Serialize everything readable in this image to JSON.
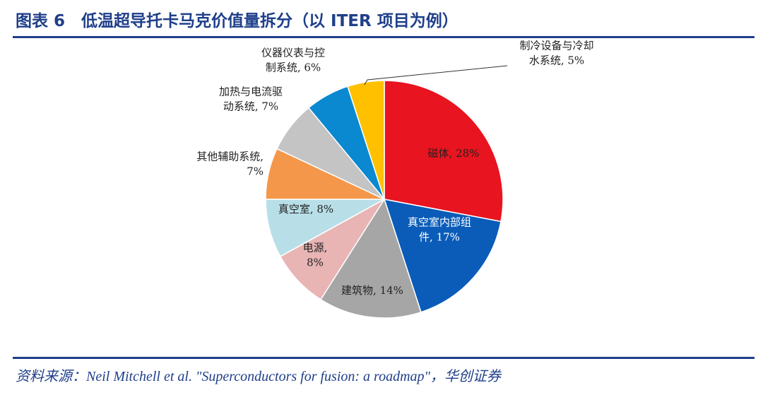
{
  "header": {
    "title": "图表 6　低温超导托卡马克价值量拆分（以 ITER 项目为例）"
  },
  "footer": {
    "source": "资料来源：Neil Mitchell et al. \"Superconductors for fusion: a roadmap\"，华创证券"
  },
  "chart_data": {
    "type": "pie",
    "categories": [
      "磁体",
      "真空室内部组件",
      "建筑物",
      "电源",
      "真空室",
      "其他辅助系统",
      "加热与电流驱动系统",
      "仪器仪表与控制系统",
      "制冷设备与冷却水系统"
    ],
    "values": [
      28,
      17,
      14,
      8,
      8,
      7,
      7,
      6,
      5
    ],
    "unit": "%",
    "colors": [
      "#e8141f",
      "#0a5cb8",
      "#a6a6a6",
      "#e8b4b4",
      "#b8dfe8",
      "#f4974a",
      "#c4c4c4",
      "#0a88d0",
      "#ffc000"
    ],
    "labels": [
      [
        "磁体, 28%"
      ],
      [
        "真空室内部组",
        "件, 17%"
      ],
      [
        "建筑物, 14%"
      ],
      [
        "电源,",
        "8%"
      ],
      [
        "真空室, 8%"
      ],
      [
        "其他辅助系统,",
        "7%"
      ],
      [
        "加热与电流驱",
        "动系统, 7%"
      ],
      [
        "仪器仪表与控",
        "制系统, 6%"
      ],
      [
        "制冷设备与冷却",
        "水系统, 5%"
      ]
    ]
  }
}
